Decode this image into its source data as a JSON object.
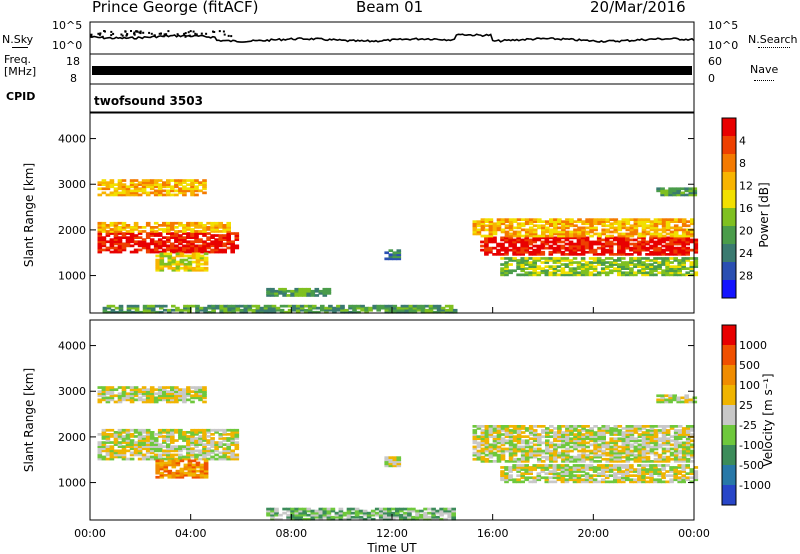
{
  "header": {
    "radar_title": "Prince George (fitACF)",
    "beam": "Beam 01",
    "date": "20/Mar/2016"
  },
  "top_panel": {
    "nsky_label": "N.Sky",
    "nsearch_label": "N.Search",
    "freq_label_1": "Freq.",
    "freq_label_2": "[MHz]",
    "nave_label": "Nave",
    "cpid_label": "CPID",
    "cpid_value": "twofsound 3503",
    "noise_ticks_left": [
      "10^5",
      "10^0"
    ],
    "noise_ticks_right": [
      "10^5",
      "10^0"
    ],
    "freq_ticks": [
      "18",
      "8"
    ],
    "nave_ticks": [
      "60",
      "0"
    ]
  },
  "chart_data": [
    {
      "type": "heatmap",
      "panel": "power",
      "ylabel": "Slant Range [km]",
      "xlabel": "",
      "ylim": [
        180,
        4560
      ],
      "yticks": [
        "1000",
        "2000",
        "3000",
        "4000"
      ],
      "xlim": [
        "00:00",
        "24:00"
      ],
      "colorbar": {
        "label": "Power [dB]",
        "ticks": [
          "4",
          "8",
          "12",
          "16",
          "20",
          "24",
          "28"
        ],
        "colors": [
          "#1414ff",
          "#2a4fb2",
          "#3a7a70",
          "#4a9c4a",
          "#7fc020",
          "#f2e000",
          "#f8b400",
          "#f47a00",
          "#ee4000",
          "#e80000"
        ]
      },
      "regions": [
        {
          "t0": 0.3,
          "t1": 5.9,
          "r0": 1500,
          "r1": 1950,
          "level": 9
        },
        {
          "t0": 0.3,
          "t1": 5.5,
          "r0": 1950,
          "r1": 2150,
          "level": 6
        },
        {
          "t0": 0.3,
          "t1": 4.6,
          "r0": 2750,
          "r1": 3100,
          "level": 6
        },
        {
          "t0": 2.6,
          "t1": 4.6,
          "r0": 1100,
          "r1": 1500,
          "level": 5
        },
        {
          "t0": 15.5,
          "t1": 24,
          "r0": 1450,
          "r1": 1850,
          "level": 9
        },
        {
          "t0": 15.2,
          "t1": 24,
          "r0": 1850,
          "r1": 2250,
          "level": 6
        },
        {
          "t0": 16.3,
          "t1": 24,
          "r0": 1000,
          "r1": 1400,
          "level": 4
        },
        {
          "t0": 22.5,
          "t1": 24,
          "r0": 2750,
          "r1": 2900,
          "level": 3
        },
        {
          "t0": 11.7,
          "t1": 12.3,
          "r0": 1350,
          "r1": 1550,
          "level": 2
        },
        {
          "t0": 7.0,
          "t1": 9.5,
          "r0": 550,
          "r1": 700,
          "level": 3
        },
        {
          "t0": 0.5,
          "t1": 14.5,
          "r0": 180,
          "r1": 350,
          "level": 3
        }
      ]
    },
    {
      "type": "heatmap",
      "panel": "velocity",
      "ylabel": "Slant Range [km]",
      "xlabel": "Time UT",
      "ylim": [
        180,
        4560
      ],
      "yticks": [
        "1000",
        "2000",
        "3000",
        "4000"
      ],
      "xticks": [
        "00:00",
        "04:00",
        "08:00",
        "12:00",
        "16:00",
        "20:00",
        "00:00"
      ],
      "xlim": [
        "00:00",
        "24:00"
      ],
      "colorbar": {
        "label": "Velocity [m s⁻¹]",
        "ticks": [
          "1000",
          "500",
          "100",
          "25",
          "-25",
          "-100",
          "-500",
          "-1000"
        ],
        "colors": [
          "#2846c8",
          "#2878a8",
          "#3c8c5a",
          "#6ec83c",
          "#c8c8c8",
          "#f0b400",
          "#f08c00",
          "#f05000",
          "#e80000"
        ]
      },
      "regions": [
        {
          "t0": 0.3,
          "t1": 5.9,
          "r0": 1500,
          "r1": 2150,
          "level": 4
        },
        {
          "t0": 0.3,
          "t1": 4.6,
          "r0": 2750,
          "r1": 3100,
          "level": 4
        },
        {
          "t0": 2.6,
          "t1": 4.6,
          "r0": 1100,
          "r1": 1500,
          "level": 6
        },
        {
          "t0": 15.2,
          "t1": 24,
          "r0": 1450,
          "r1": 2250,
          "level": 4
        },
        {
          "t0": 16.3,
          "t1": 24,
          "r0": 1000,
          "r1": 1400,
          "level": 4
        },
        {
          "t0": 22.5,
          "t1": 24,
          "r0": 2750,
          "r1": 2900,
          "level": 4
        },
        {
          "t0": 11.7,
          "t1": 12.3,
          "r0": 1350,
          "r1": 1550,
          "level": 4
        },
        {
          "t0": 7.0,
          "t1": 14.5,
          "r0": 180,
          "r1": 450,
          "level": 3
        }
      ]
    }
  ]
}
